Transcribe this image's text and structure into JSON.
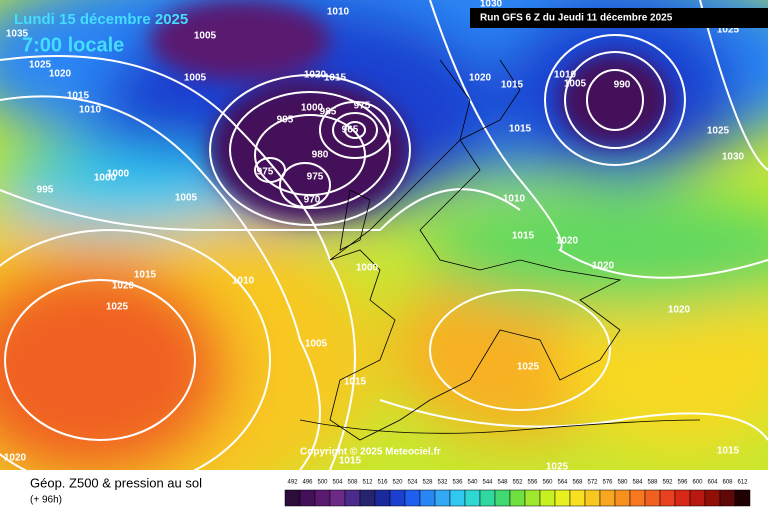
{
  "header": {
    "date": "Lundi 15 décembre 2025",
    "time": "7:00 locale",
    "run": "Run GFS 6 Z du Jeudi 11 décembre 2025"
  },
  "copyright": "Copyright © 2025 Meteociel.fr",
  "footer": {
    "title": "Géop. Z500 & pression au sol",
    "lead": "(+ 96h)"
  },
  "legend": {
    "values": [
      492,
      496,
      500,
      504,
      508,
      512,
      516,
      520,
      524,
      528,
      532,
      536,
      540,
      544,
      548,
      552,
      556,
      560,
      564,
      568,
      572,
      576,
      580,
      584,
      588,
      592,
      596,
      600,
      604,
      608,
      612
    ],
    "colors": [
      "#2d0b3a",
      "#44105a",
      "#5a1a70",
      "#6a2a85",
      "#4a2a8a",
      "#26246e",
      "#1a2a9e",
      "#1c3fd0",
      "#1e5ff0",
      "#2a86f5",
      "#33a8f5",
      "#30c8f0",
      "#2ed8d0",
      "#30d8a0",
      "#40d870",
      "#70e040",
      "#a0e830",
      "#c8f020",
      "#e8f020",
      "#f8e020",
      "#f8c820",
      "#f8a820",
      "#f89020",
      "#f87820",
      "#f06020",
      "#e84020",
      "#d82818",
      "#b81810",
      "#901008",
      "#600808",
      "#200000"
    ]
  },
  "isobar_labels": [
    1010,
    1005,
    1025,
    1020,
    1005,
    1015,
    1010,
    1020,
    1015,
    1000,
    995,
    985,
    975,
    965,
    980,
    975,
    975,
    970,
    1000,
    995,
    1000,
    1005,
    1015,
    1010,
    1025,
    1020,
    1000,
    1005,
    1015,
    1015,
    1020,
    1025,
    1015,
    1020,
    1015,
    1015,
    1010,
    1005,
    990,
    1025,
    1030,
    1010,
    1015,
    1020,
    1020,
    1020,
    1025,
    1030,
    1025,
    1035
  ]
}
